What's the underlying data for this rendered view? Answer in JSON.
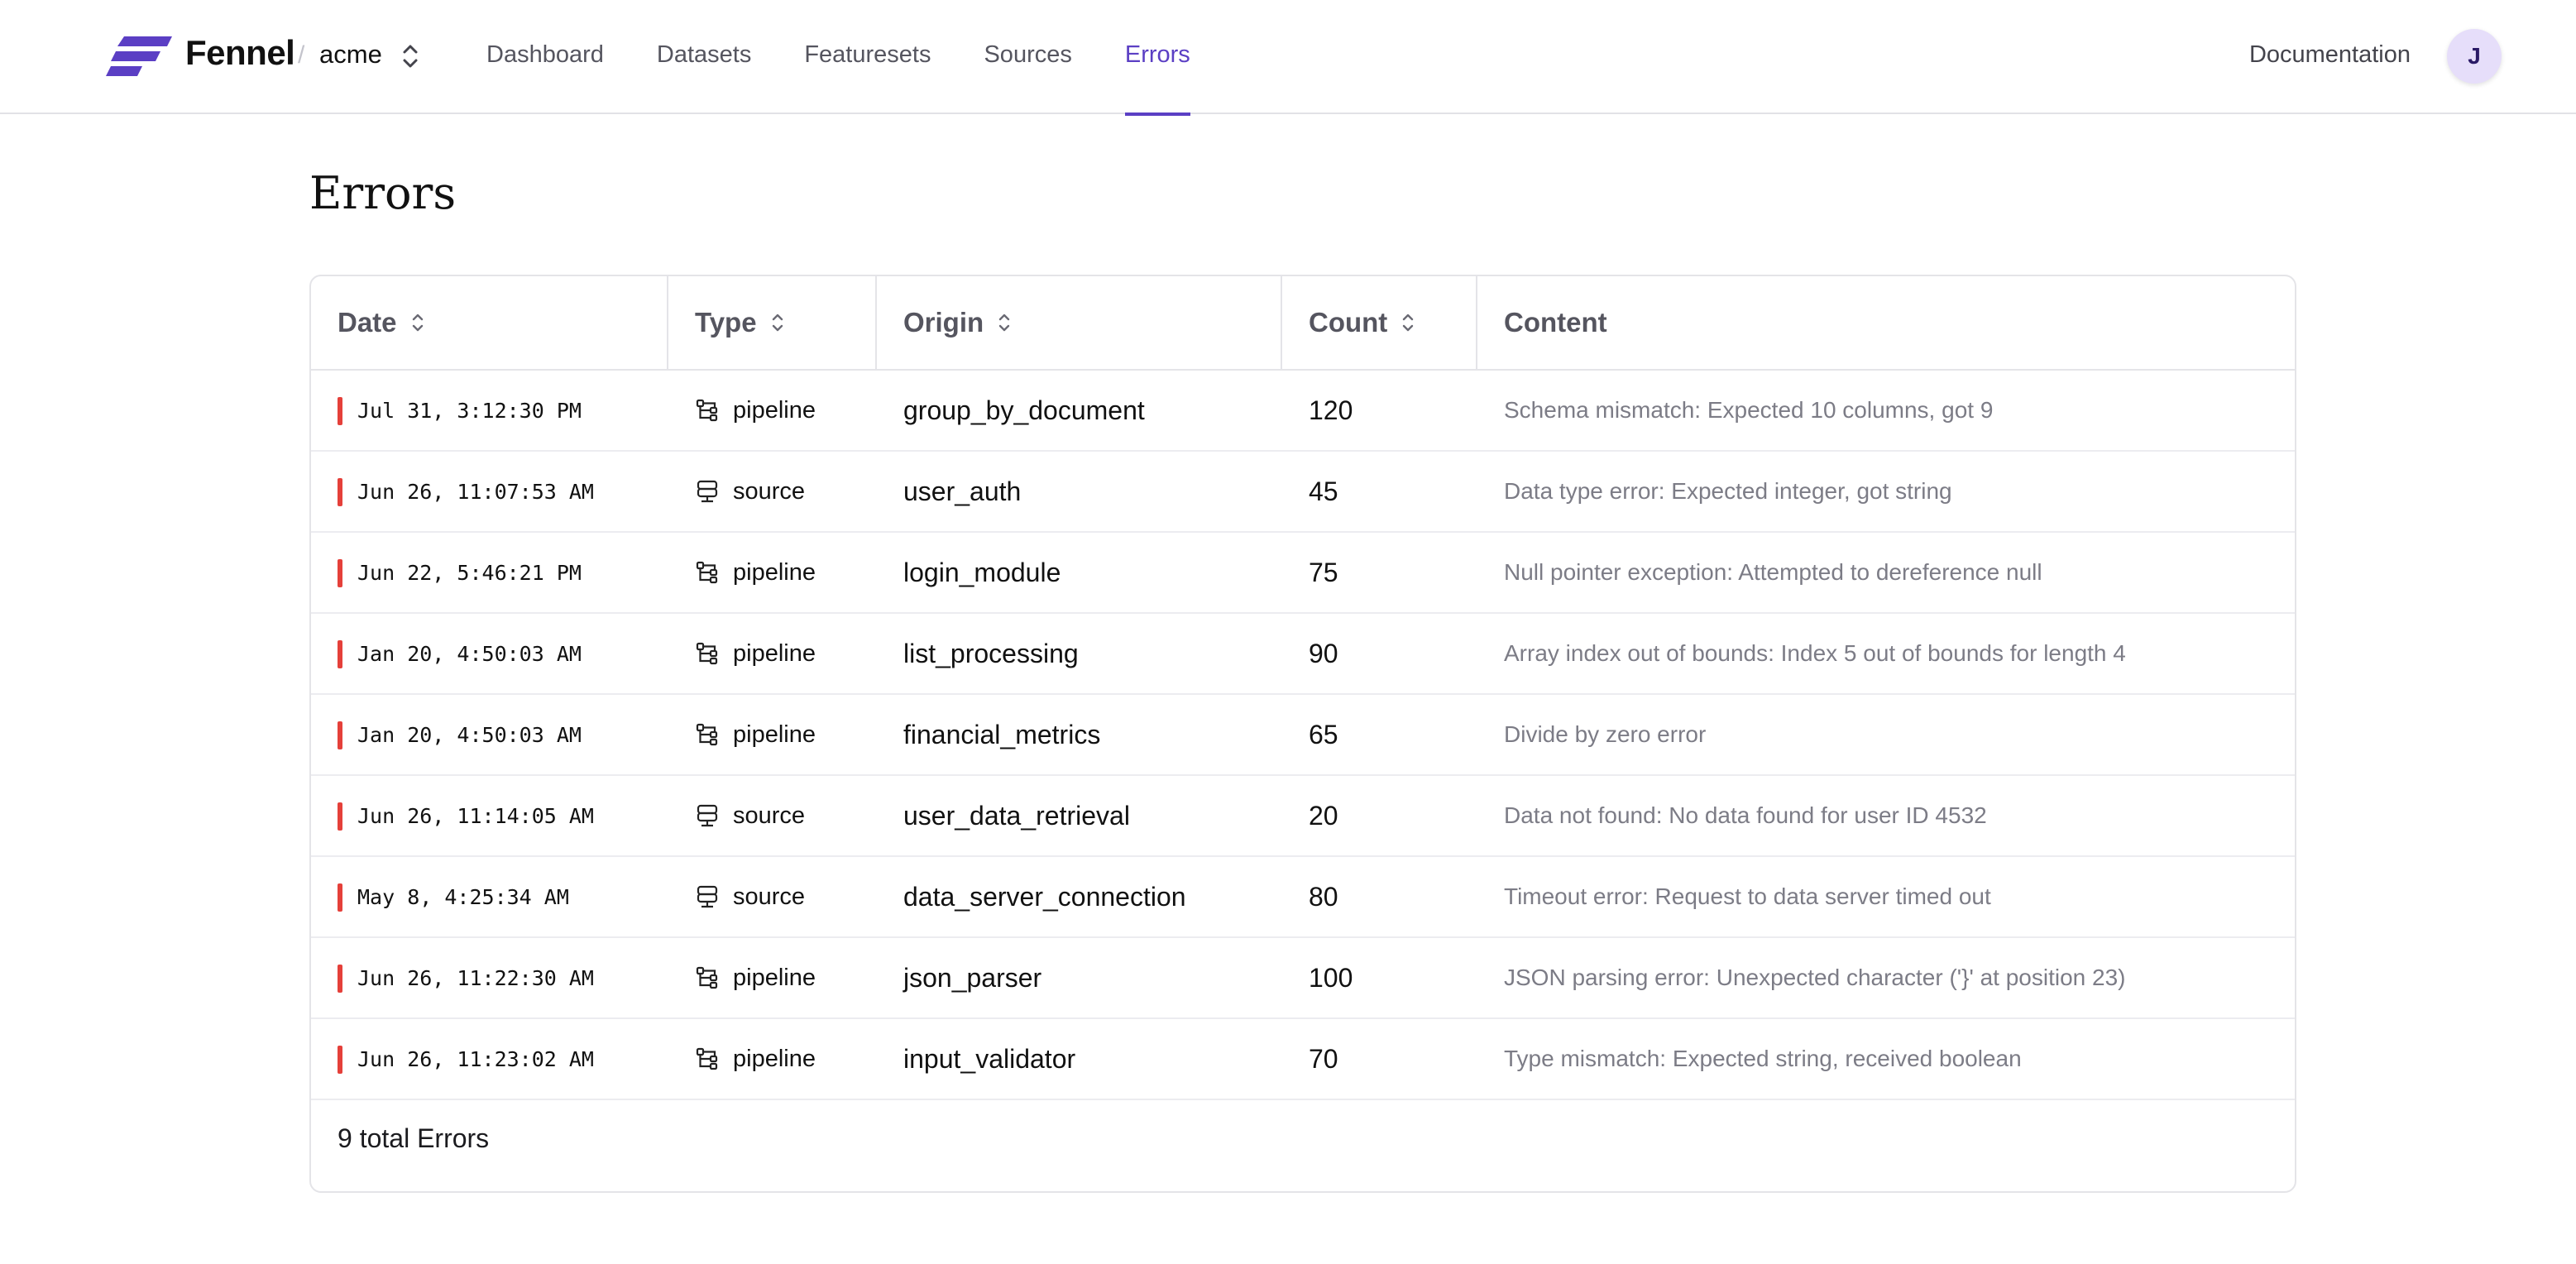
{
  "brand": {
    "name": "Fennel",
    "separator": "/",
    "org": "acme"
  },
  "nav": {
    "tabs": [
      {
        "label": "Dashboard",
        "active": false
      },
      {
        "label": "Datasets",
        "active": false
      },
      {
        "label": "Featuresets",
        "active": false
      },
      {
        "label": "Sources",
        "active": false
      },
      {
        "label": "Errors",
        "active": true
      }
    ],
    "documentation": "Documentation",
    "avatar_initial": "J"
  },
  "page": {
    "title": "Errors"
  },
  "table": {
    "columns": [
      {
        "label": "Date",
        "sortable": true
      },
      {
        "label": "Type",
        "sortable": true
      },
      {
        "label": "Origin",
        "sortable": true
      },
      {
        "label": "Count",
        "sortable": true
      },
      {
        "label": "Content",
        "sortable": false
      }
    ],
    "rows": [
      {
        "date": "Jul 31, 3:12:30 PM",
        "type": "pipeline",
        "origin": "group_by_document",
        "count": "120",
        "content": "Schema mismatch: Expected 10 columns, got 9"
      },
      {
        "date": "Jun 26, 11:07:53 AM",
        "type": "source",
        "origin": "user_auth",
        "count": "45",
        "content": "Data type error: Expected integer, got string"
      },
      {
        "date": "Jun 22, 5:46:21 PM",
        "type": "pipeline",
        "origin": "login_module",
        "count": "75",
        "content": "Null pointer exception: Attempted to dereference null"
      },
      {
        "date": "Jan 20, 4:50:03 AM",
        "type": "pipeline",
        "origin": "list_processing",
        "count": "90",
        "content": "Array index out of bounds: Index 5 out of bounds for length 4"
      },
      {
        "date": "Jan 20, 4:50:03 AM",
        "type": "pipeline",
        "origin": "financial_metrics",
        "count": "65",
        "content": "Divide by zero error"
      },
      {
        "date": "Jun 26, 11:14:05 AM",
        "type": "source",
        "origin": "user_data_retrieval",
        "count": "20",
        "content": "Data not found: No data found for user ID 4532"
      },
      {
        "date": "May 8, 4:25:34 AM",
        "type": "source",
        "origin": "data_server_connection",
        "count": "80",
        "content": "Timeout error: Request to data server timed out"
      },
      {
        "date": "Jun 26, 11:22:30 AM",
        "type": "pipeline",
        "origin": "json_parser",
        "count": "100",
        "content": "JSON parsing error: Unexpected character ('}' at position 23)"
      },
      {
        "date": "Jun 26, 11:23:02 AM",
        "type": "pipeline",
        "origin": "input_validator",
        "count": "70",
        "content": "Type mismatch: Expected string, received boolean"
      }
    ],
    "footer": "9 total Errors"
  },
  "colors": {
    "accent": "#5b3fc4",
    "error": "#e5403a",
    "muted_text": "#7c7c86",
    "border": "#e4e4e8"
  }
}
